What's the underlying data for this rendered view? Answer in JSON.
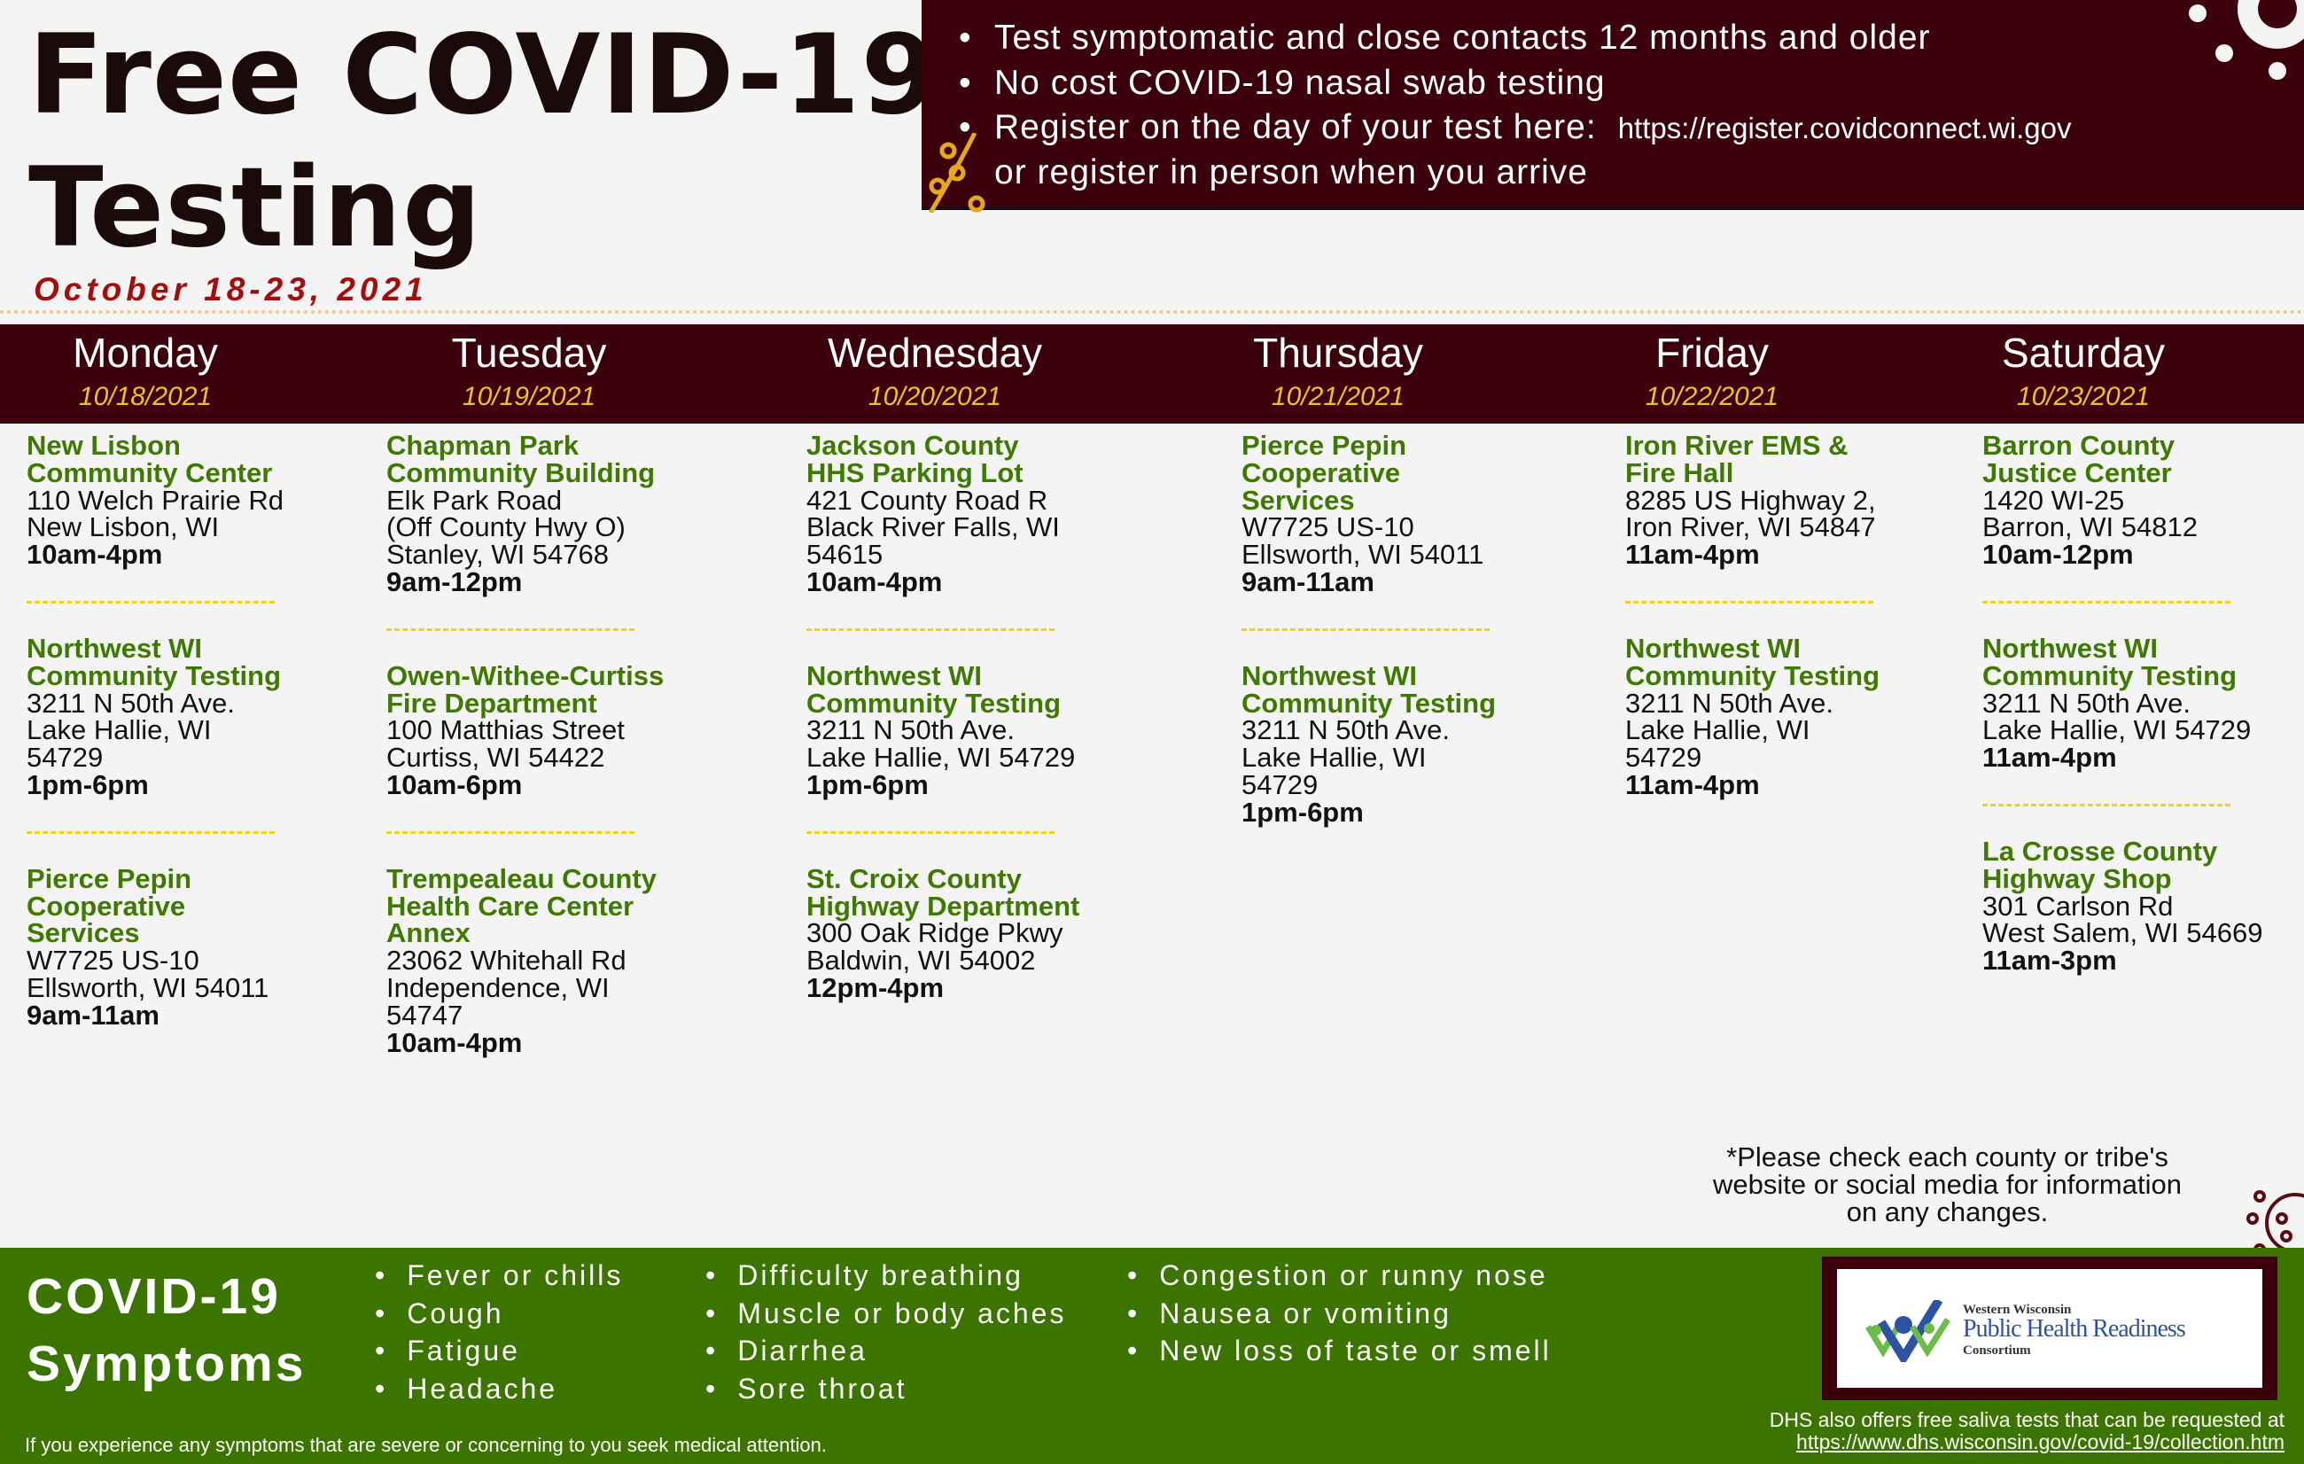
{
  "title": {
    "line1": "Free COVID-19",
    "line2": "Testing",
    "dates": "October 18-23, 2021"
  },
  "info": {
    "bullets": [
      "Test symptomatic and close contacts 12 months and older",
      "No cost COVID-19 nasal swab testing",
      "Register on the day of your test here:"
    ],
    "register_url": "https://register.covidconnect.wi.gov",
    "register_line2": "or register in person when you arrive"
  },
  "colors": {
    "maroon": "#3b000c",
    "green": "#3c7400",
    "site_green": "#3f7a00",
    "date_red": "#a30d0d",
    "date_yellow": "#f2c21b"
  },
  "days": [
    {
      "name": "Monday",
      "date": "10/18/2021",
      "sites": [
        {
          "name": [
            "New Lisbon",
            "Community Center"
          ],
          "address": [
            "110 Welch Prairie Rd",
            "New Lisbon, WI"
          ],
          "hours": "10am-4pm"
        },
        {
          "name": [
            "Northwest WI",
            "Community Testing"
          ],
          "address": [
            "3211 N 50th Ave.",
            "Lake Hallie, WI",
            "54729"
          ],
          "hours": "1pm-6pm"
        },
        {
          "name": [
            "Pierce Pepin",
            "Cooperative",
            "Services"
          ],
          "address": [
            "W7725 US-10",
            "Ellsworth, WI 54011"
          ],
          "hours": "9am-11am"
        }
      ]
    },
    {
      "name": "Tuesday",
      "date": "10/19/2021",
      "sites": [
        {
          "name": [
            "Chapman Park",
            "Community Building"
          ],
          "address": [
            "Elk Park Road",
            "(Off County Hwy O)",
            "Stanley, WI 54768"
          ],
          "hours": "9am-12pm"
        },
        {
          "name": [
            "Owen-Withee-Curtiss",
            "Fire Department"
          ],
          "address": [
            "100 Matthias Street",
            "Curtiss, WI 54422"
          ],
          "hours": "10am-6pm"
        },
        {
          "name": [
            "Trempealeau County",
            "Health Care Center",
            "Annex"
          ],
          "address": [
            "23062 Whitehall Rd",
            "Independence, WI",
            "54747"
          ],
          "hours": "10am-4pm"
        }
      ]
    },
    {
      "name": "Wednesday",
      "date": "10/20/2021",
      "sites": [
        {
          "name": [
            "Jackson County",
            "HHS Parking Lot"
          ],
          "address": [
            "421 County Road R",
            "Black River Falls, WI",
            "54615"
          ],
          "hours": "10am-4pm"
        },
        {
          "name": [
            "Northwest WI",
            "Community Testing"
          ],
          "address": [
            "3211 N 50th Ave.",
            "Lake Hallie, WI 54729"
          ],
          "hours": "1pm-6pm"
        },
        {
          "name": [
            "St. Croix County",
            "Highway Department"
          ],
          "address": [
            "300 Oak Ridge Pkwy",
            "Baldwin, WI 54002"
          ],
          "hours": "12pm-4pm"
        }
      ]
    },
    {
      "name": "Thursday",
      "date": "10/21/2021",
      "sites": [
        {
          "name": [
            "Pierce Pepin",
            "Cooperative",
            "Services"
          ],
          "address": [
            "W7725 US-10",
            "Ellsworth, WI 54011"
          ],
          "hours": "9am-11am"
        },
        {
          "name": [
            "Northwest WI",
            "Community Testing"
          ],
          "address": [
            "3211 N 50th Ave.",
            "Lake Hallie, WI",
            "54729"
          ],
          "hours": "1pm-6pm"
        }
      ]
    },
    {
      "name": "Friday",
      "date": "10/22/2021",
      "sites": [
        {
          "name": [
            "Iron River EMS &",
            "Fire Hall"
          ],
          "address": [
            "8285 US Highway 2,",
            "Iron River, WI 54847"
          ],
          "hours": "11am-4pm"
        },
        {
          "name": [
            "Northwest WI",
            "Community Testing"
          ],
          "address": [
            "3211 N 50th Ave.",
            "Lake Hallie, WI",
            "54729"
          ],
          "hours": "11am-4pm"
        }
      ]
    },
    {
      "name": "Saturday",
      "date": "10/23/2021",
      "sites": [
        {
          "name": [
            "Barron County",
            "Justice Center"
          ],
          "address": [
            "1420 WI-25",
            "Barron, WI 54812"
          ],
          "hours": "10am-12pm"
        },
        {
          "name": [
            "Northwest WI",
            "Community Testing"
          ],
          "address": [
            "3211 N 50th Ave.",
            "Lake Hallie, WI 54729"
          ],
          "hours": "11am-4pm"
        },
        {
          "name": [
            "La Crosse County",
            "Highway Shop"
          ],
          "address": [
            "301 Carlson Rd",
            "West Salem, WI 54669"
          ],
          "hours": "11am-3pm"
        }
      ]
    }
  ],
  "note": "*Please check each county or tribe's website or social media for information on any changes.",
  "symptoms": {
    "title1": "COVID-19",
    "title2": "Symptoms",
    "columns": [
      [
        "Fever or chills",
        "Cough",
        "Fatigue",
        "Headache"
      ],
      [
        "Difficulty breathing",
        "Muscle or body aches",
        "Diarrhea",
        "Sore throat"
      ],
      [
        "Congestion or runny nose",
        "Nausea or vomiting",
        "New loss of taste or smell"
      ]
    ],
    "warning": "If you experience any symptoms that are severe or concerning to you seek medical attention."
  },
  "logo": {
    "line1": "Western Wisconsin",
    "line2": "Public Health Readiness",
    "line3": "Consortium"
  },
  "dhs": {
    "text": "DHS also offers  free saliva tests that can be requested at",
    "url": "https://www.dhs.wisconsin.gov/covid-19/collection.htm"
  }
}
